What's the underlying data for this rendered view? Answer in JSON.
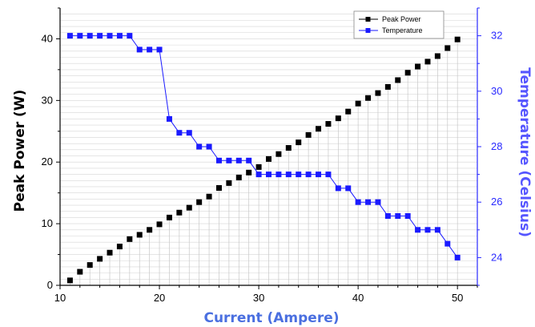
{
  "chart_data": {
    "type": "line",
    "title": "",
    "xlabel": "Current (Ampere)",
    "ylabel_left": "Peak Power (W)",
    "ylabel_right": "Temperature (Celsius)",
    "xlim": [
      10,
      52
    ],
    "ylim_left": [
      0,
      45
    ],
    "ylim_right": [
      23,
      33
    ],
    "xticks": [
      10,
      20,
      30,
      40,
      50
    ],
    "yticks_left": [
      0,
      10,
      20,
      30,
      40
    ],
    "yticks_right": [
      24,
      26,
      28,
      30,
      32
    ],
    "grid": "horizontal lines on left axis, vertical drop lines from each Peak Power point",
    "legend_position": "top-right",
    "series": [
      {
        "name": "Peak Power",
        "axis": "left",
        "color": "#000000",
        "marker": "square",
        "line": false,
        "x": [
          11,
          12,
          13,
          14,
          15,
          16,
          17,
          18,
          19,
          20,
          21,
          22,
          23,
          24,
          25,
          26,
          27,
          28,
          29,
          30,
          31,
          32,
          33,
          34,
          35,
          36,
          37,
          38,
          39,
          40,
          41,
          42,
          43,
          44,
          45,
          46,
          47,
          48,
          49,
          50
        ],
        "y": [
          0.8,
          2.2,
          3.3,
          4.3,
          5.3,
          6.3,
          7.5,
          8.2,
          9.0,
          9.9,
          11.0,
          11.8,
          12.6,
          13.5,
          14.4,
          15.8,
          16.6,
          17.5,
          18.3,
          19.2,
          20.5,
          21.3,
          22.3,
          23.2,
          24.4,
          25.4,
          26.2,
          27.1,
          28.2,
          29.5,
          30.4,
          31.2,
          32.2,
          33.3,
          34.5,
          35.5,
          36.3,
          37.2,
          38.5,
          39.9
        ]
      },
      {
        "name": "Temperature",
        "axis": "right",
        "color": "#1a1aff",
        "marker": "square",
        "line": true,
        "x": [
          11,
          12,
          13,
          14,
          15,
          16,
          17,
          18,
          19,
          20,
          21,
          22,
          23,
          24,
          25,
          26,
          27,
          28,
          29,
          30,
          31,
          32,
          33,
          34,
          35,
          36,
          37,
          38,
          39,
          40,
          41,
          42,
          43,
          44,
          45,
          46,
          47,
          48,
          49,
          50
        ],
        "y": [
          32,
          32,
          32,
          32,
          32,
          32,
          32,
          31.5,
          31.5,
          31.5,
          29,
          28.5,
          28.5,
          28,
          28,
          27.5,
          27.5,
          27.5,
          27.5,
          27,
          27,
          27,
          27,
          27,
          27,
          27,
          27,
          26.5,
          26.5,
          26,
          26,
          26,
          25.5,
          25.5,
          25.5,
          25,
          25,
          25,
          24.5,
          24
        ]
      }
    ]
  }
}
